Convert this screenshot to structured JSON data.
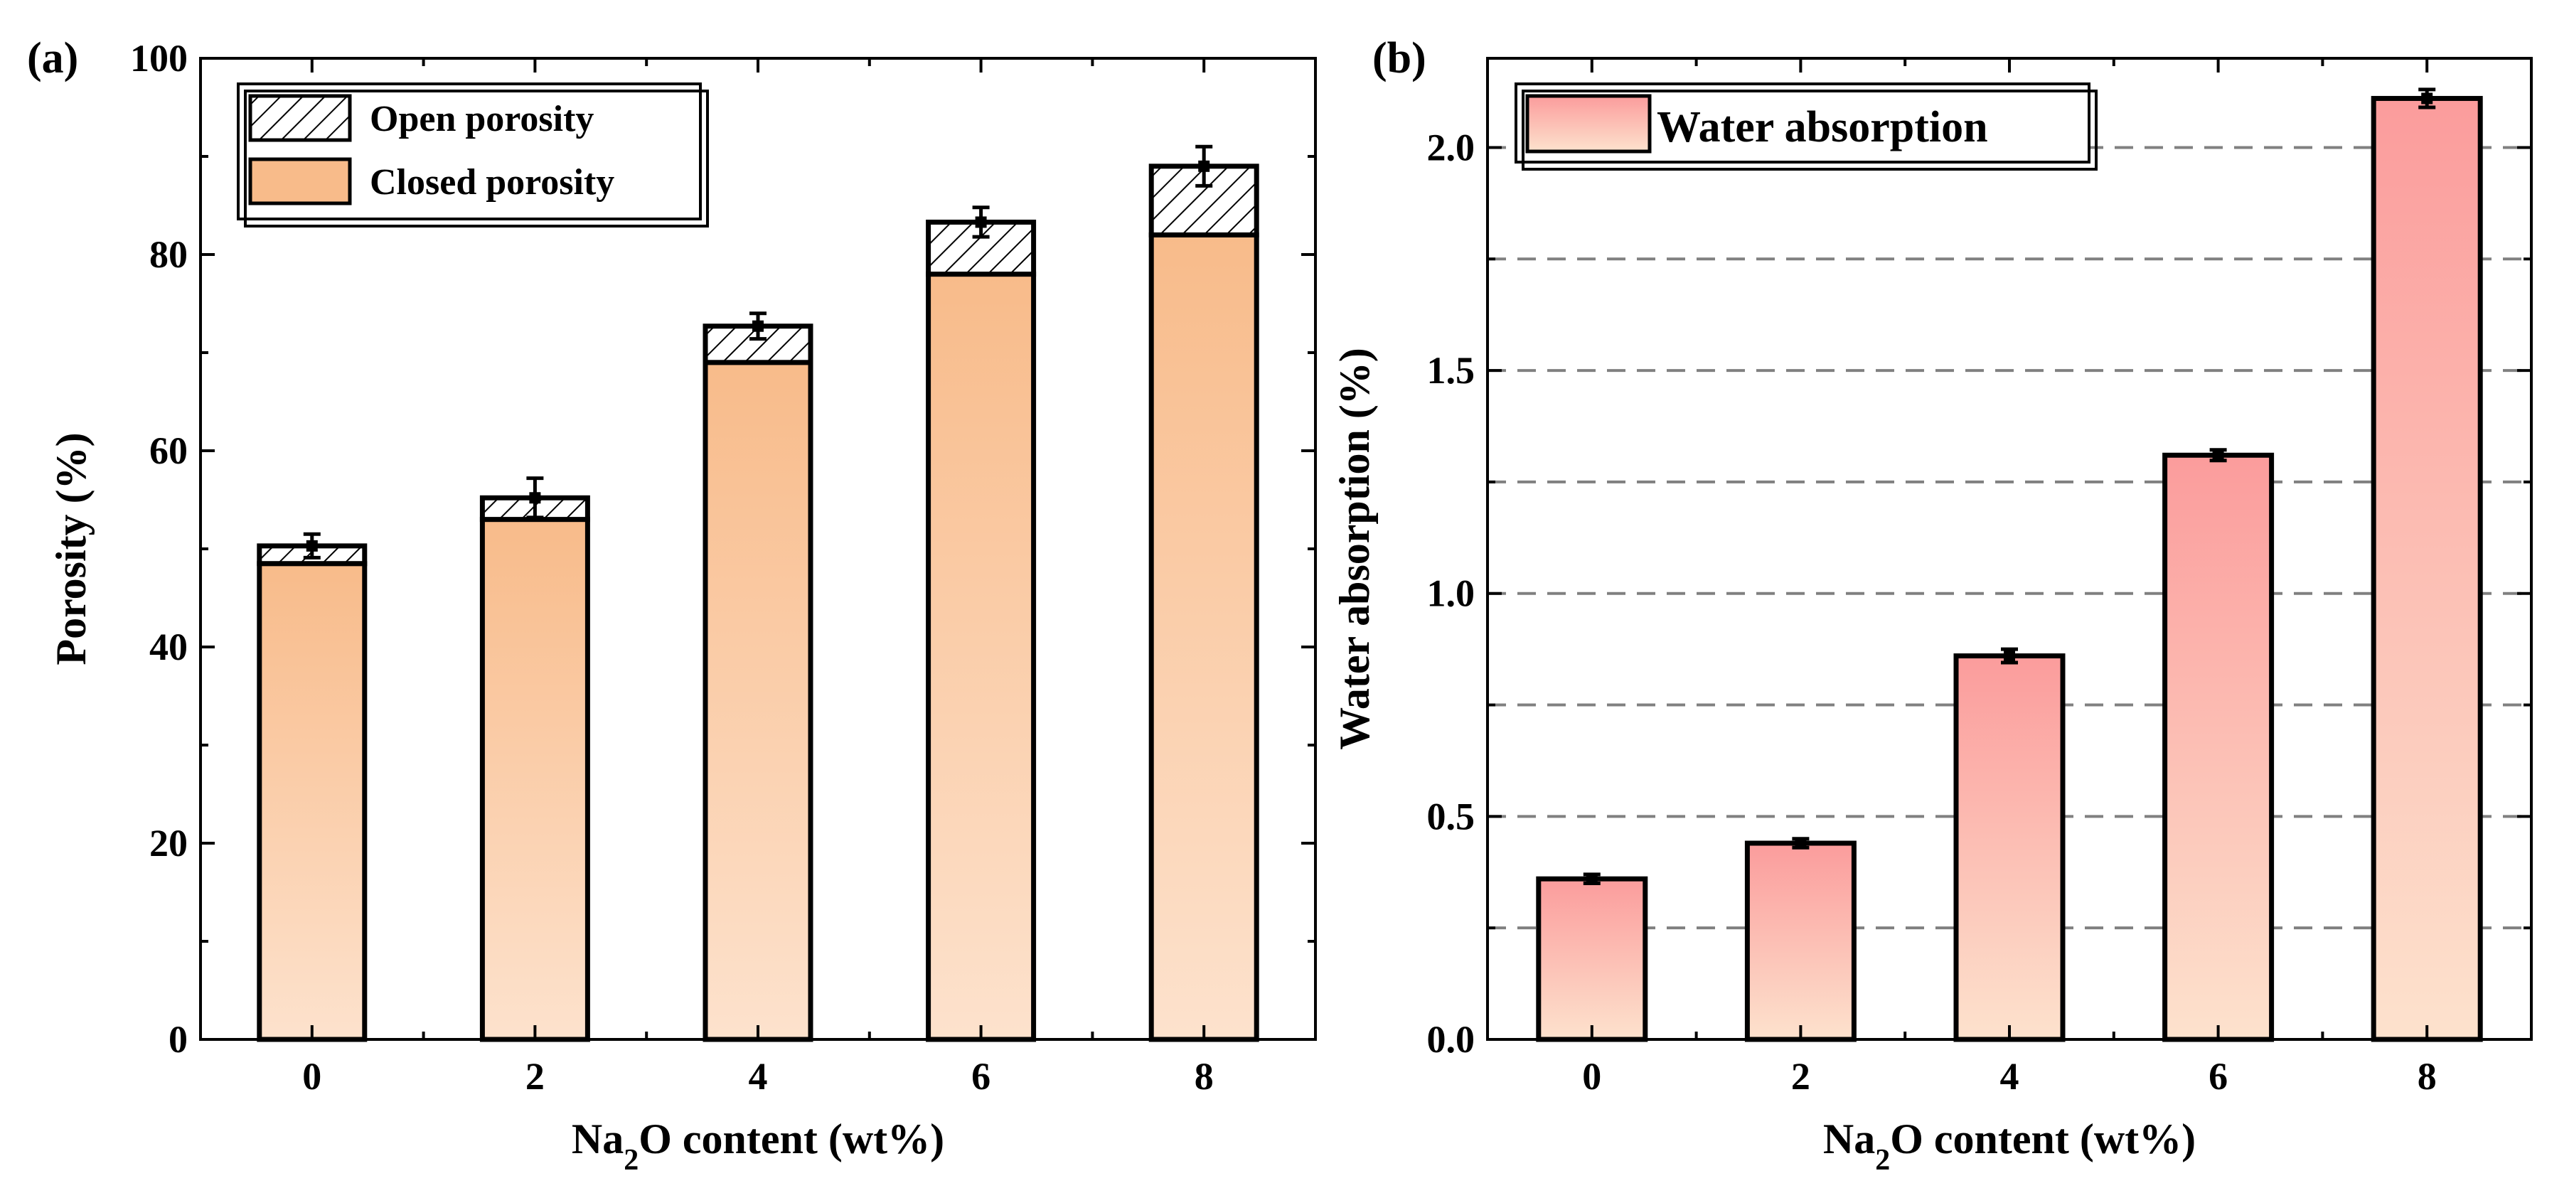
{
  "chart_data": [
    {
      "panel_label": "(a)",
      "type": "bar",
      "stacked": true,
      "categories": [
        "0",
        "2",
        "4",
        "6",
        "8"
      ],
      "series": [
        {
          "name": "Closed porosity",
          "values": [
            48.5,
            53.0,
            69.0,
            78.0,
            82.0
          ],
          "color_top": "#f8bb8a",
          "color_bottom": "#fde2cd"
        },
        {
          "name": "Open porosity",
          "values": [
            1.8,
            2.2,
            3.7,
            5.3,
            7.0
          ],
          "pattern": "hatch"
        }
      ],
      "totals": [
        50.3,
        55.2,
        72.7,
        83.3,
        89.0
      ],
      "errors": [
        1.2,
        2.0,
        1.3,
        1.5,
        2.0
      ],
      "xlabel_prefix": "Na",
      "xlabel_sub": "2",
      "xlabel_suffix": "O content (wt%)",
      "ylabel": "Porosity (%)",
      "ylim": [
        0,
        100
      ],
      "yticks": [
        "0",
        "20",
        "40",
        "60",
        "80",
        "100"
      ],
      "legend": [
        "Open porosity",
        "Closed porosity"
      ],
      "legend_position": "top-left",
      "grid": false
    },
    {
      "panel_label": "(b)",
      "type": "bar",
      "categories": [
        "0",
        "2",
        "4",
        "6",
        "8"
      ],
      "series": [
        {
          "name": "Water absorption",
          "values": [
            0.36,
            0.44,
            0.86,
            1.31,
            2.11
          ],
          "color_top": "#fb9c9c",
          "color_bottom": "#fde2cd"
        }
      ],
      "errors": [
        0.01,
        0.01,
        0.015,
        0.012,
        0.02
      ],
      "xlabel_prefix": "Na",
      "xlabel_sub": "2",
      "xlabel_suffix": "O content (wt%)",
      "ylabel": "Water absorption (%)",
      "ylim": [
        0,
        2.2
      ],
      "yticks": [
        "0.0",
        "0.5",
        "1.0",
        "1.5",
        "2.0"
      ],
      "gridlines": [
        0.25,
        0.5,
        0.75,
        1.0,
        1.25,
        1.5,
        1.75,
        2.0
      ],
      "legend": [
        "Water absorption"
      ],
      "legend_position": "top-left",
      "grid": true
    }
  ]
}
